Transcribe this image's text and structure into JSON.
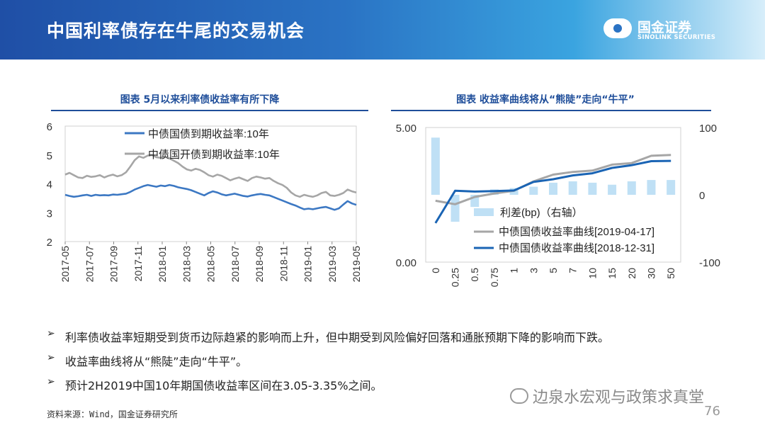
{
  "header": {
    "title": "中国利率债存在牛尾的交易机会"
  },
  "logo": {
    "name_cn": "国金证券",
    "name_en": "SINOLINK SECURITIES"
  },
  "captions": {
    "left": "图表  5月以来利率债收益率有所下降",
    "right": "图表  收益率曲线将从“熊陡”走向“牛平”"
  },
  "bullets": [
    "利率债收益率短期受到货币边际趋紧的影响而上升，但中期受到风险偏好回落和通胀预期下降的影响而下跌。",
    "收益率曲线将从“熊陡”走向“牛平”。",
    "预计2H2019中国10年期国债收益率区间在3.05-3.35%之间。"
  ],
  "bullet_mark": "➢",
  "source": "资料来源：Wind，国金证券研究所",
  "watermark": "边泉水宏观与政策求真堂",
  "page_number": "76",
  "chart_data": [
    {
      "type": "line",
      "y_ticks": [
        "6",
        "5",
        "4",
        "3",
        "2"
      ],
      "ylim": [
        2,
        6
      ],
      "x_ticks": [
        "2017-05",
        "2017-07",
        "2017-09",
        "2017-11",
        "2018-01",
        "2018-03",
        "2018-05",
        "2018-07",
        "2018-09",
        "2018-11",
        "2019-01",
        "2019-03",
        "2019-05"
      ],
      "legend_position": "top",
      "series": [
        {
          "name": "中债国债到期收益率:10年",
          "color": "#3c78c3",
          "values": [
            3.62,
            3.58,
            3.55,
            3.57,
            3.6,
            3.62,
            3.58,
            3.62,
            3.6,
            3.61,
            3.6,
            3.63,
            3.62,
            3.64,
            3.66,
            3.72,
            3.8,
            3.86,
            3.92,
            3.96,
            3.93,
            3.9,
            3.94,
            3.92,
            3.96,
            3.93,
            3.88,
            3.85,
            3.82,
            3.78,
            3.72,
            3.66,
            3.6,
            3.68,
            3.74,
            3.7,
            3.64,
            3.6,
            3.63,
            3.66,
            3.62,
            3.58,
            3.56,
            3.6,
            3.63,
            3.65,
            3.62,
            3.6,
            3.54,
            3.48,
            3.42,
            3.36,
            3.3,
            3.25,
            3.18,
            3.12,
            3.14,
            3.12,
            3.15,
            3.18,
            3.2,
            3.15,
            3.1,
            3.15,
            3.28,
            3.4,
            3.32,
            3.27
          ]
        },
        {
          "name": "中债国开债到期收益率:10年",
          "color": "#a6a6a6",
          "values": [
            4.32,
            4.38,
            4.3,
            4.22,
            4.2,
            4.28,
            4.24,
            4.26,
            4.3,
            4.22,
            4.28,
            4.32,
            4.26,
            4.3,
            4.4,
            4.6,
            4.82,
            4.95,
            4.9,
            4.98,
            5.0,
            4.92,
            4.9,
            4.95,
            4.88,
            4.8,
            4.72,
            4.6,
            4.5,
            4.46,
            4.52,
            4.48,
            4.4,
            4.3,
            4.25,
            4.32,
            4.28,
            4.2,
            4.12,
            4.18,
            4.22,
            4.16,
            4.1,
            4.2,
            4.25,
            4.22,
            4.18,
            4.2,
            4.1,
            4.02,
            3.96,
            3.86,
            3.7,
            3.6,
            3.55,
            3.62,
            3.58,
            3.55,
            3.6,
            3.68,
            3.72,
            3.6,
            3.58,
            3.62,
            3.68,
            3.8,
            3.74,
            3.7
          ]
        }
      ]
    },
    {
      "type": "bar+line",
      "categories": [
        "0",
        "0.25",
        "0.5",
        "0.75",
        "1",
        "3",
        "5",
        "7",
        "10",
        "15",
        "20",
        "30",
        "50"
      ],
      "left_axis": {
        "ticks": [
          "5.00",
          "0.00"
        ],
        "ylim": [
          0,
          5
        ]
      },
      "right_axis": {
        "ticks": [
          "100",
          "0",
          "-100"
        ],
        "ylim": [
          -100,
          100
        ]
      },
      "bars": {
        "name": "利差(bp)（右轴）",
        "color": "#bfe0f5",
        "values": [
          85,
          -40,
          -18,
          8,
          10,
          12,
          18,
          20,
          18,
          15,
          20,
          22,
          22
        ]
      },
      "series": [
        {
          "name": "中债国债收益率曲线[2019-04-17]",
          "color": "#a6a6a6",
          "values": [
            2.28,
            2.15,
            2.42,
            2.55,
            2.65,
            3.0,
            3.25,
            3.35,
            3.4,
            3.62,
            3.68,
            3.95,
            3.98
          ]
        },
        {
          "name": "中债国债收益率曲线[2018-12-31]",
          "color": "#1a64b4",
          "values": [
            1.45,
            2.65,
            2.62,
            2.64,
            2.66,
            2.98,
            3.08,
            3.22,
            3.3,
            3.5,
            3.6,
            3.75,
            3.76
          ]
        }
      ]
    }
  ]
}
